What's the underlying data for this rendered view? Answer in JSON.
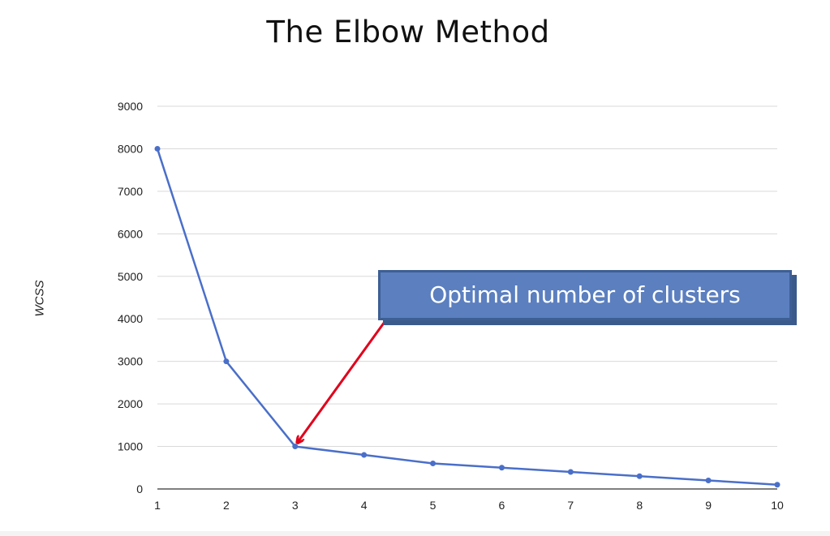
{
  "chart_data": {
    "type": "line",
    "title": "The Elbow Method",
    "xlabel": "",
    "ylabel": "WCSS",
    "x": [
      1,
      2,
      3,
      4,
      5,
      6,
      7,
      8,
      9,
      10
    ],
    "series": [
      {
        "values": [
          8000,
          3000,
          1000,
          800,
          600,
          500,
          400,
          300,
          200,
          100
        ]
      }
    ],
    "xlim": [
      1,
      10
    ],
    "ylim": [
      0,
      9000
    ],
    "yticks": [
      0,
      1000,
      2000,
      3000,
      4000,
      5000,
      6000,
      7000,
      8000,
      9000
    ],
    "xticks": [
      1,
      2,
      3,
      4,
      5,
      6,
      7,
      8,
      9,
      10
    ],
    "grid": true,
    "line_color": "#4a6fc9",
    "annotation": {
      "text": "Optimal number of clusters",
      "x": 3,
      "y": 1000,
      "box_color": "#5b7fbf",
      "arrow_color": "#e0001b"
    }
  }
}
